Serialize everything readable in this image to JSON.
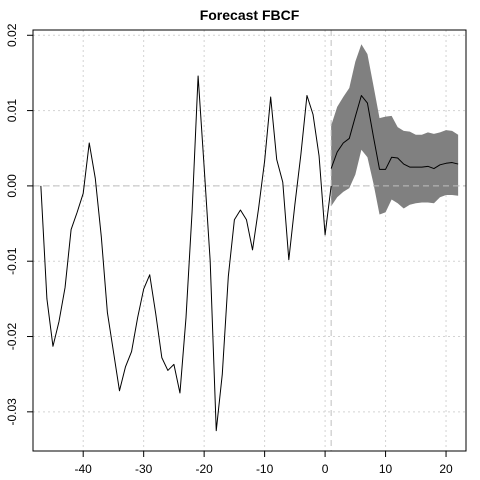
{
  "chart_data": {
    "type": "line",
    "title": "Forecast FBCF",
    "xlabel": "",
    "ylabel": "",
    "xlim": [
      -48.3,
      23.3
    ],
    "ylim": [
      -0.0352,
      0.0207
    ],
    "x_ticks": [
      -40,
      -30,
      -20,
      -10,
      0,
      10,
      20
    ],
    "y_ticks": [
      -0.03,
      -0.02,
      -0.01,
      0.0,
      0.01,
      0.02
    ],
    "x_tick_labels": [
      "-40",
      "-30",
      "-20",
      "-10",
      "0",
      "10",
      "20"
    ],
    "y_tick_labels": [
      "-0.03",
      "-0.02",
      "-0.01",
      "0.00",
      "0.01",
      "0.02"
    ],
    "grid": true,
    "reference_lines": {
      "horizontal": 0,
      "vertical": 1
    },
    "colors": {
      "line": "#000000",
      "band": "#808080",
      "grid": "#d3d3d3",
      "reference": "#bebebe"
    },
    "series": [
      {
        "role": "history",
        "x": [
          -47,
          -46,
          -45,
          -44,
          -43,
          -42,
          -41,
          -40,
          -39,
          -38,
          -37,
          -36,
          -35,
          -34,
          -33,
          -32,
          -31,
          -30,
          -29,
          -28,
          -27,
          -26,
          -25,
          -24,
          -23,
          -22,
          -21,
          -20,
          -19,
          -18,
          -17,
          -16,
          -15,
          -14,
          -13,
          -12,
          -11,
          -10,
          -9,
          -8,
          -7,
          -6,
          -5,
          -4,
          -3,
          -2,
          -1,
          0,
          1
        ],
        "y": [
          0.0,
          -0.015,
          -0.0213,
          -0.018,
          -0.0135,
          -0.0058,
          -0.0035,
          -0.001,
          0.0057,
          0.001,
          -0.0068,
          -0.0168,
          -0.022,
          -0.0272,
          -0.024,
          -0.022,
          -0.0175,
          -0.0137,
          -0.0118,
          -0.017,
          -0.0228,
          -0.0245,
          -0.0237,
          -0.0275,
          -0.0175,
          -0.0035,
          0.0146,
          0.0025,
          -0.01,
          -0.0325,
          -0.025,
          -0.012,
          -0.0045,
          -0.0032,
          -0.0045,
          -0.0085,
          -0.003,
          0.0033,
          0.0118,
          0.0035,
          0.0005,
          -0.0098,
          -0.0025,
          0.0042,
          0.012,
          0.0095,
          0.004,
          -0.0065,
          0.0
        ]
      },
      {
        "role": "forecast",
        "x": [
          1,
          2,
          3,
          4,
          5,
          6,
          7,
          8,
          9,
          10,
          11,
          12,
          13,
          14,
          15,
          16,
          17,
          18,
          19,
          20,
          21,
          22
        ],
        "y": [
          0.0023,
          0.0045,
          0.0057,
          0.0063,
          0.0092,
          0.012,
          0.011,
          0.0065,
          0.0022,
          0.0022,
          0.0038,
          0.0037,
          0.0029,
          0.0025,
          0.0025,
          0.0025,
          0.0026,
          0.0023,
          0.0028,
          0.003,
          0.0031,
          0.0029
        ]
      }
    ],
    "band": {
      "x": [
        1,
        2,
        3,
        4,
        5,
        6,
        7,
        8,
        9,
        10,
        11,
        12,
        13,
        14,
        15,
        16,
        17,
        18,
        19,
        20,
        21,
        22
      ],
      "upper": [
        0.008,
        0.0105,
        0.0118,
        0.013,
        0.0165,
        0.0188,
        0.0175,
        0.0133,
        0.009,
        0.0092,
        0.0093,
        0.0078,
        0.0073,
        0.0072,
        0.0068,
        0.0068,
        0.0071,
        0.0069,
        0.0071,
        0.0074,
        0.0073,
        0.0068
      ],
      "lower": [
        -0.0027,
        -0.0015,
        -0.0008,
        -0.0003,
        0.0015,
        0.0048,
        0.0038,
        0.0003,
        -0.0038,
        -0.0035,
        -0.0018,
        -0.0023,
        -0.003,
        -0.0025,
        -0.0023,
        -0.0022,
        -0.0022,
        -0.0023,
        -0.0015,
        -0.0012,
        -0.0012,
        -0.0013
      ]
    }
  }
}
